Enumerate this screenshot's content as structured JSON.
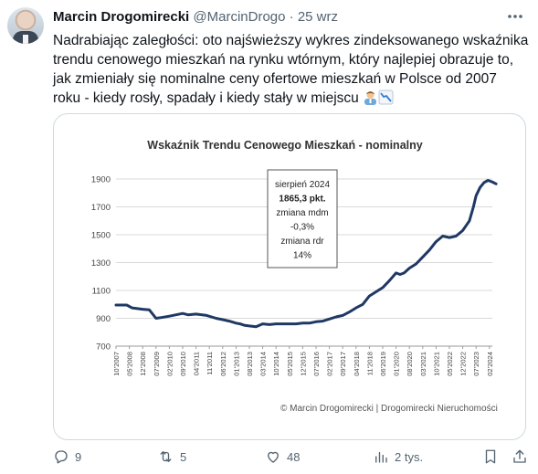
{
  "tweet": {
    "author_name": "Marcin Drogomirecki",
    "handle": "@MarcinDrogo",
    "separator": "·",
    "time": "25 wrz",
    "text_lines": [
      "Nadrabiając zaległości: oto najświeższy wykres zindeksowanego wskaźnika",
      "trendu cenowego mieszkań na rynku wtórnym, który najlepiej obrazuje to,",
      "jak zmieniały się nominalne ceny ofertowe mieszkań w Polsce od  2007",
      "roku - kiedy rosły, spadały i kiedy stały w miejscu"
    ],
    "emoji_icons": [
      "office-worker-emoji",
      "chart-decreasing-emoji"
    ]
  },
  "chart_data": {
    "type": "line",
    "title": "Wskaźnik Trendu Cenowego Mieszkań - nominalny",
    "ylim": [
      700,
      1900
    ],
    "y_ticks": [
      700,
      900,
      1100,
      1300,
      1500,
      1700,
      1900
    ],
    "x_tick_labels": [
      "10'2007",
      "05'2008",
      "12'2008",
      "07'2009",
      "02'2010",
      "09'2010",
      "04'2011",
      "11'2011",
      "06'2012",
      "01'2013",
      "08'2013",
      "03'2014",
      "10'2014",
      "05'2015",
      "12'2015",
      "07'2016",
      "02'2017",
      "09'2017",
      "04'2018",
      "11'2018",
      "06'2019",
      "01'2020",
      "08'2020",
      "03'2021",
      "10'2021",
      "05'2022",
      "12'2022",
      "07'2023",
      "02'2024"
    ],
    "series": [
      {
        "color": "#1f3864",
        "x_index": [
          0,
          0.8,
          1.2,
          2,
          2.5,
          3,
          3.4,
          4,
          5,
          5.4,
          6,
          6.8,
          7.5,
          8,
          8.5,
          9,
          9.3,
          9.6,
          10,
          10.5,
          11,
          11.5,
          12,
          12.5,
          13,
          13.5,
          14,
          14.5,
          15,
          15.5,
          16,
          16.5,
          17,
          17.5,
          18,
          18.5,
          19,
          19.5,
          20,
          20.5,
          21,
          21.3,
          21.6,
          22,
          22.5,
          23,
          23.5,
          24,
          24.5,
          25,
          25.5,
          26,
          26.5,
          26.8,
          27,
          27.3,
          27.6,
          27.9,
          28.2,
          28.5
        ],
        "values": [
          995,
          995,
          975,
          965,
          960,
          900,
          905,
          915,
          935,
          925,
          930,
          920,
          900,
          890,
          880,
          865,
          860,
          850,
          845,
          840,
          860,
          855,
          860,
          860,
          860,
          860,
          865,
          865,
          875,
          880,
          895,
          910,
          920,
          945,
          975,
          1000,
          1060,
          1090,
          1120,
          1170,
          1225,
          1215,
          1225,
          1260,
          1290,
          1340,
          1390,
          1450,
          1490,
          1480,
          1490,
          1530,
          1600,
          1700,
          1780,
          1840,
          1875,
          1890,
          1880,
          1865
        ]
      }
    ],
    "annotation_lines": [
      "sierpień 2024",
      "1865,3 pkt.",
      "zmiana mdm",
      "-0,3%",
      "zmiana rdr",
      "14%"
    ],
    "footer": "© Marcin Drogomirecki | Drogomirecki Nieruchomości",
    "grid": true,
    "legend": "none"
  },
  "actions": {
    "replies": "9",
    "reposts": "5",
    "likes": "48",
    "views": "2 tys."
  }
}
